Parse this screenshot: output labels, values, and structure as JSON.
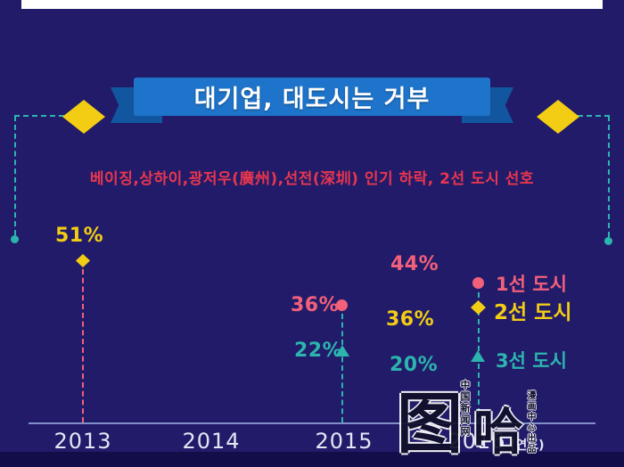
{
  "colors": {
    "background": "#221b69",
    "footer_strip": "#130e49",
    "top_strip": "#ffffff",
    "ribbon_blue": "#1e74ca",
    "ribbon_dark": "#12569f",
    "yellow": "#f2cd13",
    "pink": "#f2607a",
    "red_text": "#e8364f",
    "teal": "#2cb4ae",
    "axis_line": "#8fa3d8",
    "year_text": "#e3e6f5",
    "title_text": "#ffffff",
    "watermark_ink": "#10102a"
  },
  "banner": {
    "title": "대기업, 대도시는 거부"
  },
  "subtitle": {
    "text": "베이징,상하이,광저우(廣州),선전(深圳) 인기 하락, 2선 도시 선호"
  },
  "chart_data": {
    "type": "scatter",
    "title": "대기업, 대도시는 거부",
    "subtitle": "베이징,상하이,광저우(廣州),선전(深圳) 인기 하락, 2선 도시 선호",
    "x_categories": [
      "2013",
      "2014",
      "2015",
      "2016"
    ],
    "x_unit_label": "(연도)",
    "y_unit": "%",
    "ylim": [
      0,
      60
    ],
    "grid": false,
    "legend_position": "right of 2016 points",
    "series": [
      {
        "name": "1선 도시",
        "marker": "circle",
        "color": "#f2607a",
        "points": [
          {
            "x": "2015",
            "y": 36,
            "label": "36%"
          },
          {
            "x": "2016",
            "y": 44,
            "label": "44%"
          }
        ]
      },
      {
        "name": "2선 도시",
        "marker": "diamond",
        "color": "#f2cd13",
        "points": [
          {
            "x": "2013",
            "y": 51,
            "label": "51%"
          },
          {
            "x": "2016",
            "y": 36,
            "label": "36%"
          }
        ]
      },
      {
        "name": "3선 도시",
        "marker": "triangle",
        "color": "#2cb4ae",
        "points": [
          {
            "x": "2015",
            "y": 22,
            "label": "22%"
          },
          {
            "x": "2016",
            "y": 20,
            "label": "20%"
          }
        ]
      }
    ]
  },
  "watermark": {
    "char1": "图",
    "char2": "哈",
    "vertical_text_1": "中国新闻网",
    "vertical_text_2": "漫画中心出品"
  }
}
